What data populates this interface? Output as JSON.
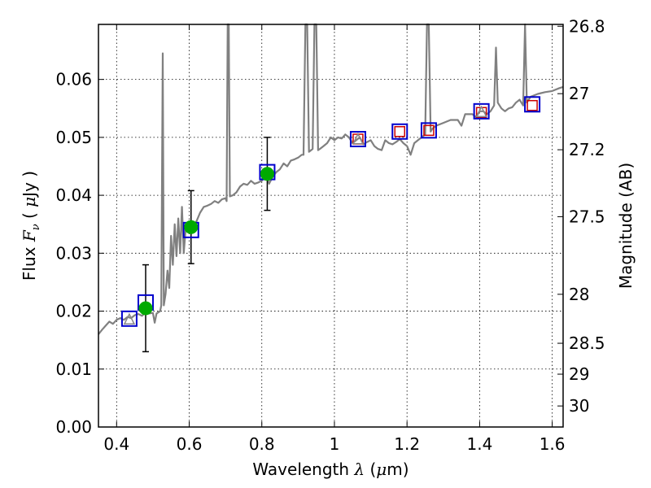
{
  "chart_data": {
    "type": "scatter",
    "xlabel": {
      "pre": "Wavelength  ",
      "sym": "λ",
      "post": " (",
      "sym2": "μ",
      "post2": "m)"
    },
    "ylabel": {
      "pre": "Flux  ",
      "sym": "F",
      "sub": "ν",
      "post": "  ( ",
      "sym2": "μ",
      "post2": "Jy )"
    },
    "y2label": "Magnitude (AB)",
    "xlim": [
      0.35,
      1.63
    ],
    "ylim": [
      0.0,
      0.0695
    ],
    "grid": true,
    "x_ticks": [
      {
        "v": 0.4,
        "label": "0.4"
      },
      {
        "v": 0.6,
        "label": "0.6"
      },
      {
        "v": 0.8,
        "label": "0.8"
      },
      {
        "v": 1.0,
        "label": "1"
      },
      {
        "v": 1.2,
        "label": "1.2"
      },
      {
        "v": 1.4,
        "label": "1.4"
      },
      {
        "v": 1.6,
        "label": "1.6"
      }
    ],
    "y_ticks": [
      {
        "v": 0.0,
        "label": "0.00"
      },
      {
        "v": 0.01,
        "label": "0.01"
      },
      {
        "v": 0.02,
        "label": "0.02"
      },
      {
        "v": 0.03,
        "label": "0.03"
      },
      {
        "v": 0.04,
        "label": "0.04"
      },
      {
        "v": 0.05,
        "label": "0.05"
      },
      {
        "v": 0.06,
        "label": "0.06"
      }
    ],
    "mag_ticks": [
      {
        "label": "26.8",
        "mag": 26.8
      },
      {
        "label": "27",
        "mag": 27.0
      },
      {
        "label": "27.2",
        "mag": 27.2
      },
      {
        "label": "27.5",
        "mag": 27.5
      },
      {
        "label": "28",
        "mag": 28.0
      },
      {
        "label": "28.5",
        "mag": 28.5
      },
      {
        "label": "29",
        "mag": 29.0
      },
      {
        "label": "30",
        "mag": 30.0
      }
    ],
    "model_spectrum": {
      "color": "#808080",
      "points": [
        [
          0.35,
          0.016
        ],
        [
          0.36,
          0.0168
        ],
        [
          0.37,
          0.0175
        ],
        [
          0.38,
          0.0182
        ],
        [
          0.39,
          0.0178
        ],
        [
          0.4,
          0.0185
        ],
        [
          0.41,
          0.0188
        ],
        [
          0.42,
          0.0185
        ],
        [
          0.43,
          0.019
        ],
        [
          0.44,
          0.0188
        ],
        [
          0.45,
          0.0193
        ],
        [
          0.46,
          0.0195
        ],
        [
          0.47,
          0.0192
        ],
        [
          0.48,
          0.0198
        ],
        [
          0.49,
          0.0196
        ],
        [
          0.5,
          0.0197
        ],
        [
          0.505,
          0.018
        ],
        [
          0.51,
          0.0196
        ],
        [
          0.52,
          0.02
        ],
        [
          0.523,
          0.021
        ],
        [
          0.527,
          0.0645
        ],
        [
          0.53,
          0.021
        ],
        [
          0.535,
          0.023
        ],
        [
          0.54,
          0.027
        ],
        [
          0.545,
          0.024
        ],
        [
          0.55,
          0.033
        ],
        [
          0.555,
          0.028
        ],
        [
          0.56,
          0.035
        ],
        [
          0.565,
          0.0295
        ],
        [
          0.57,
          0.036
        ],
        [
          0.575,
          0.03
        ],
        [
          0.58,
          0.038
        ],
        [
          0.585,
          0.03
        ],
        [
          0.59,
          0.034
        ],
        [
          0.6,
          0.034
        ],
        [
          0.61,
          0.0345
        ],
        [
          0.62,
          0.0355
        ],
        [
          0.63,
          0.037
        ],
        [
          0.64,
          0.038
        ],
        [
          0.65,
          0.0382
        ],
        [
          0.66,
          0.0385
        ],
        [
          0.67,
          0.039
        ],
        [
          0.68,
          0.0387
        ],
        [
          0.69,
          0.0393
        ],
        [
          0.7,
          0.0395
        ],
        [
          0.703,
          0.039
        ],
        [
          0.706,
          0.07
        ],
        [
          0.709,
          0.07
        ],
        [
          0.712,
          0.0398
        ],
        [
          0.72,
          0.04
        ],
        [
          0.73,
          0.0405
        ],
        [
          0.74,
          0.0415
        ],
        [
          0.75,
          0.042
        ],
        [
          0.76,
          0.0418
        ],
        [
          0.77,
          0.0425
        ],
        [
          0.78,
          0.042
        ],
        [
          0.79,
          0.0422
        ],
        [
          0.8,
          0.0425
        ],
        [
          0.81,
          0.044
        ],
        [
          0.815,
          0.043
        ],
        [
          0.82,
          0.042
        ],
        [
          0.83,
          0.0432
        ],
        [
          0.84,
          0.044
        ],
        [
          0.85,
          0.0445
        ],
        [
          0.86,
          0.0455
        ],
        [
          0.87,
          0.045
        ],
        [
          0.88,
          0.046
        ],
        [
          0.89,
          0.0462
        ],
        [
          0.9,
          0.0465
        ],
        [
          0.91,
          0.047
        ],
        [
          0.915,
          0.047
        ],
        [
          0.92,
          0.07
        ],
        [
          0.925,
          0.07
        ],
        [
          0.93,
          0.0475
        ],
        [
          0.94,
          0.048
        ],
        [
          0.945,
          0.07
        ],
        [
          0.95,
          0.07
        ],
        [
          0.955,
          0.0478
        ],
        [
          0.96,
          0.048
        ],
        [
          0.97,
          0.0485
        ],
        [
          0.98,
          0.049
        ],
        [
          0.99,
          0.05
        ],
        [
          1.0,
          0.0495
        ],
        [
          1.01,
          0.05
        ],
        [
          1.02,
          0.0498
        ],
        [
          1.03,
          0.0505
        ],
        [
          1.04,
          0.05
        ],
        [
          1.05,
          0.049
        ],
        [
          1.06,
          0.0495
        ],
        [
          1.07,
          0.05
        ],
        [
          1.08,
          0.0488
        ],
        [
          1.09,
          0.0492
        ],
        [
          1.1,
          0.0495
        ],
        [
          1.11,
          0.0485
        ],
        [
          1.12,
          0.048
        ],
        [
          1.13,
          0.0478
        ],
        [
          1.14,
          0.0495
        ],
        [
          1.15,
          0.049
        ],
        [
          1.16,
          0.0488
        ],
        [
          1.17,
          0.0492
        ],
        [
          1.18,
          0.0497
        ],
        [
          1.19,
          0.049
        ],
        [
          1.2,
          0.0485
        ],
        [
          1.21,
          0.047
        ],
        [
          1.22,
          0.049
        ],
        [
          1.23,
          0.0495
        ],
        [
          1.24,
          0.05
        ],
        [
          1.25,
          0.0505
        ],
        [
          1.255,
          0.07
        ],
        [
          1.26,
          0.07
        ],
        [
          1.265,
          0.051
        ],
        [
          1.27,
          0.0515
        ],
        [
          1.28,
          0.052
        ],
        [
          1.3,
          0.0525
        ],
        [
          1.32,
          0.053
        ],
        [
          1.34,
          0.053
        ],
        [
          1.35,
          0.052
        ],
        [
          1.36,
          0.054
        ],
        [
          1.38,
          0.054
        ],
        [
          1.39,
          0.0535
        ],
        [
          1.4,
          0.0545
        ],
        [
          1.41,
          0.0545
        ],
        [
          1.42,
          0.054
        ],
        [
          1.43,
          0.0545
        ],
        [
          1.44,
          0.0555
        ],
        [
          1.445,
          0.0655
        ],
        [
          1.45,
          0.056
        ],
        [
          1.46,
          0.055
        ],
        [
          1.47,
          0.0545
        ],
        [
          1.48,
          0.055
        ],
        [
          1.49,
          0.0552
        ],
        [
          1.5,
          0.056
        ],
        [
          1.51,
          0.0565
        ],
        [
          1.52,
          0.0555
        ],
        [
          1.525,
          0.07
        ],
        [
          1.53,
          0.056
        ],
        [
          1.54,
          0.057
        ],
        [
          1.56,
          0.0575
        ],
        [
          1.58,
          0.0578
        ],
        [
          1.6,
          0.058
        ],
        [
          1.62,
          0.0585
        ],
        [
          1.63,
          0.0587
        ]
      ]
    },
    "observed_points": {
      "color": "#00aa00",
      "points": [
        {
          "x": 0.48,
          "y": 0.0205,
          "err": 0.0075
        },
        {
          "x": 0.605,
          "y": 0.0345,
          "err": 0.0063
        },
        {
          "x": 0.815,
          "y": 0.0437,
          "err": 0.0063
        }
      ]
    },
    "model_photometry": {
      "color": "#0000cc",
      "points": [
        {
          "x": 0.435,
          "y": 0.0187
        },
        {
          "x": 0.48,
          "y": 0.0215
        },
        {
          "x": 0.605,
          "y": 0.034
        },
        {
          "x": 0.815,
          "y": 0.044
        },
        {
          "x": 1.065,
          "y": 0.0497
        },
        {
          "x": 1.18,
          "y": 0.051
        },
        {
          "x": 1.26,
          "y": 0.0512
        },
        {
          "x": 1.405,
          "y": 0.0545
        },
        {
          "x": 1.545,
          "y": 0.0557
        }
      ]
    },
    "upper_bands": {
      "color": "#cc0000",
      "points": [
        {
          "x": 1.065,
          "y": 0.0497
        },
        {
          "x": 1.18,
          "y": 0.051
        },
        {
          "x": 1.26,
          "y": 0.0512
        },
        {
          "x": 1.405,
          "y": 0.0543
        },
        {
          "x": 1.545,
          "y": 0.0555
        }
      ]
    },
    "triangles": {
      "color": "#888888",
      "points": [
        {
          "x": 0.435,
          "y": 0.0185
        },
        {
          "x": 1.065,
          "y": 0.0496
        },
        {
          "x": 1.405,
          "y": 0.0543
        }
      ]
    }
  }
}
